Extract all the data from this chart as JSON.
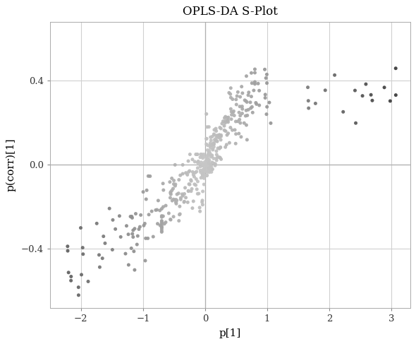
{
  "title": "OPLS-DA S-Plot",
  "xlabel": "p[1]",
  "ylabel": "p(corr)[1]",
  "xlim": [
    -2.5,
    3.3
  ],
  "ylim": [
    -0.68,
    0.68
  ],
  "xticks": [
    -2,
    -1,
    0,
    1,
    2,
    3
  ],
  "yticks": [
    -0.4,
    0.0,
    0.4
  ],
  "background_color": "#ffffff",
  "grid_color": "#d0d0d0",
  "seed": 42
}
